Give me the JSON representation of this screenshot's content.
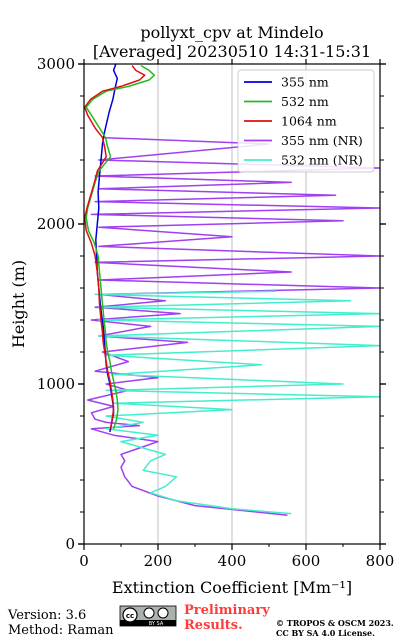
{
  "chart_data": {
    "type": "line",
    "title": "pollyxt_cpv at Mindelo",
    "subtitle": "[Averaged] 20230510 14:31-15:31",
    "xlabel": "Extinction Coefficient [Mm⁻¹]",
    "ylabel": "Height (m)",
    "xlim": [
      0,
      800
    ],
    "ylim": [
      0,
      3000
    ],
    "xticks": [
      0,
      200,
      400,
      600,
      800
    ],
    "yticks": [
      0,
      1000,
      2000,
      3000
    ],
    "grid": "vertical",
    "legend_position": "top-right",
    "series": [
      {
        "name": "355 nm",
        "color": "#0000dd",
        "points": [
          [
            70,
            700
          ],
          [
            75,
            760
          ],
          [
            80,
            820
          ],
          [
            78,
            880
          ],
          [
            74,
            940
          ],
          [
            70,
            1000
          ],
          [
            64,
            1060
          ],
          [
            60,
            1120
          ],
          [
            58,
            1180
          ],
          [
            56,
            1240
          ],
          [
            54,
            1300
          ],
          [
            52,
            1360
          ],
          [
            48,
            1420
          ],
          [
            44,
            1500
          ],
          [
            40,
            1600
          ],
          [
            36,
            1700
          ],
          [
            34,
            1800
          ],
          [
            32,
            1900
          ],
          [
            36,
            2000
          ],
          [
            40,
            2100
          ],
          [
            38,
            2200
          ],
          [
            42,
            2300
          ],
          [
            46,
            2400
          ],
          [
            50,
            2500
          ],
          [
            54,
            2560
          ],
          [
            60,
            2620
          ],
          [
            68,
            2700
          ],
          [
            78,
            2780
          ],
          [
            84,
            2850
          ],
          [
            90,
            2910
          ],
          [
            80,
            2960
          ],
          [
            86,
            3000
          ]
        ]
      },
      {
        "name": "532 nm",
        "color": "#22bb22",
        "points": [
          [
            80,
            720
          ],
          [
            88,
            780
          ],
          [
            92,
            840
          ],
          [
            90,
            900
          ],
          [
            86,
            960
          ],
          [
            80,
            1020
          ],
          [
            74,
            1080
          ],
          [
            70,
            1140
          ],
          [
            64,
            1200
          ],
          [
            60,
            1260
          ],
          [
            58,
            1320
          ],
          [
            54,
            1400
          ],
          [
            50,
            1500
          ],
          [
            46,
            1600
          ],
          [
            42,
            1700
          ],
          [
            38,
            1800
          ],
          [
            28,
            1880
          ],
          [
            12,
            1960
          ],
          [
            6,
            2040
          ],
          [
            10,
            2100
          ],
          [
            20,
            2180
          ],
          [
            30,
            2260
          ],
          [
            40,
            2330
          ],
          [
            72,
            2420
          ],
          [
            64,
            2480
          ],
          [
            58,
            2540
          ],
          [
            42,
            2600
          ],
          [
            20,
            2680
          ],
          [
            6,
            2730
          ],
          [
            24,
            2780
          ],
          [
            60,
            2830
          ],
          [
            120,
            2860
          ],
          [
            176,
            2900
          ],
          [
            190,
            2930
          ],
          [
            176,
            2960
          ],
          [
            154,
            2990
          ]
        ]
      },
      {
        "name": "1064 nm",
        "color": "#dd1111",
        "points": [
          [
            72,
            720
          ],
          [
            76,
            780
          ],
          [
            80,
            840
          ],
          [
            78,
            900
          ],
          [
            74,
            960
          ],
          [
            70,
            1020
          ],
          [
            64,
            1080
          ],
          [
            60,
            1140
          ],
          [
            56,
            1200
          ],
          [
            52,
            1260
          ],
          [
            50,
            1320
          ],
          [
            46,
            1400
          ],
          [
            42,
            1500
          ],
          [
            40,
            1600
          ],
          [
            36,
            1700
          ],
          [
            30,
            1800
          ],
          [
            20,
            1880
          ],
          [
            6,
            1960
          ],
          [
            2,
            2040
          ],
          [
            8,
            2100
          ],
          [
            18,
            2180
          ],
          [
            28,
            2260
          ],
          [
            36,
            2330
          ],
          [
            60,
            2420
          ],
          [
            56,
            2480
          ],
          [
            50,
            2540
          ],
          [
            30,
            2600
          ],
          [
            10,
            2680
          ],
          [
            2,
            2730
          ],
          [
            18,
            2780
          ],
          [
            50,
            2830
          ],
          [
            100,
            2860
          ],
          [
            150,
            2900
          ],
          [
            164,
            2930
          ],
          [
            140,
            2960
          ],
          [
            130,
            2990
          ]
        ]
      },
      {
        "name": "355 nm (NR)",
        "color": "#a040f0",
        "points": [
          [
            550,
            180
          ],
          [
            300,
            240
          ],
          [
            200,
            300
          ],
          [
            130,
            360
          ],
          [
            110,
            420
          ],
          [
            100,
            480
          ],
          [
            110,
            520
          ],
          [
            100,
            560
          ],
          [
            150,
            600
          ],
          [
            200,
            640
          ],
          [
            80,
            680
          ],
          [
            20,
            720
          ],
          [
            150,
            740
          ],
          [
            60,
            760
          ],
          [
            30,
            780
          ],
          [
            20,
            820
          ],
          [
            80,
            860
          ],
          [
            10,
            900
          ],
          [
            120,
            960
          ],
          [
            60,
            1000
          ],
          [
            200,
            1040
          ],
          [
            30,
            1080
          ],
          [
            120,
            1140
          ],
          [
            50,
            1200
          ],
          [
            280,
            1260
          ],
          [
            40,
            1300
          ],
          [
            180,
            1360
          ],
          [
            20,
            1400
          ],
          [
            260,
            1440
          ],
          [
            30,
            1480
          ],
          [
            220,
            1520
          ],
          [
            40,
            1560
          ],
          [
            800,
            1600
          ],
          [
            40,
            1650
          ],
          [
            560,
            1700
          ],
          [
            30,
            1760
          ],
          [
            800,
            1800
          ],
          [
            40,
            1860
          ],
          [
            400,
            1920
          ],
          [
            40,
            1980
          ],
          [
            700,
            2020
          ],
          [
            20,
            2060
          ],
          [
            800,
            2100
          ],
          [
            30,
            2140
          ],
          [
            680,
            2180
          ],
          [
            40,
            2220
          ],
          [
            560,
            2260
          ],
          [
            30,
            2300
          ],
          [
            800,
            2350
          ],
          [
            40,
            2400
          ],
          [
            500,
            2500
          ],
          [
            50,
            2540
          ]
        ]
      },
      {
        "name": "532 nm (NR)",
        "color": "#44eecc",
        "points": [
          [
            560,
            190
          ],
          [
            400,
            220
          ],
          [
            250,
            270
          ],
          [
            180,
            320
          ],
          [
            220,
            360
          ],
          [
            250,
            420
          ],
          [
            160,
            460
          ],
          [
            180,
            520
          ],
          [
            220,
            560
          ],
          [
            160,
            600
          ],
          [
            100,
            640
          ],
          [
            200,
            680
          ],
          [
            60,
            720
          ],
          [
            160,
            760
          ],
          [
            60,
            800
          ],
          [
            400,
            840
          ],
          [
            80,
            880
          ],
          [
            800,
            920
          ],
          [
            60,
            960
          ],
          [
            700,
            1000
          ],
          [
            80,
            1060
          ],
          [
            480,
            1120
          ],
          [
            60,
            1180
          ],
          [
            800,
            1240
          ],
          [
            40,
            1300
          ],
          [
            800,
            1360
          ],
          [
            40,
            1400
          ],
          [
            800,
            1440
          ],
          [
            40,
            1480
          ],
          [
            720,
            1520
          ],
          [
            30,
            1560
          ],
          [
            520,
            1580
          ]
        ]
      }
    ]
  },
  "footer": {
    "version": "Version: 3.6",
    "method": "Method: Raman",
    "preliminary_line1": "Preliminary",
    "preliminary_line2": "Results.",
    "copyright_line1": "© TROPOS & OSCM 2023.",
    "copyright_line2": "CC BY SA 4.0 License.",
    "badge_label": "BY SA"
  }
}
